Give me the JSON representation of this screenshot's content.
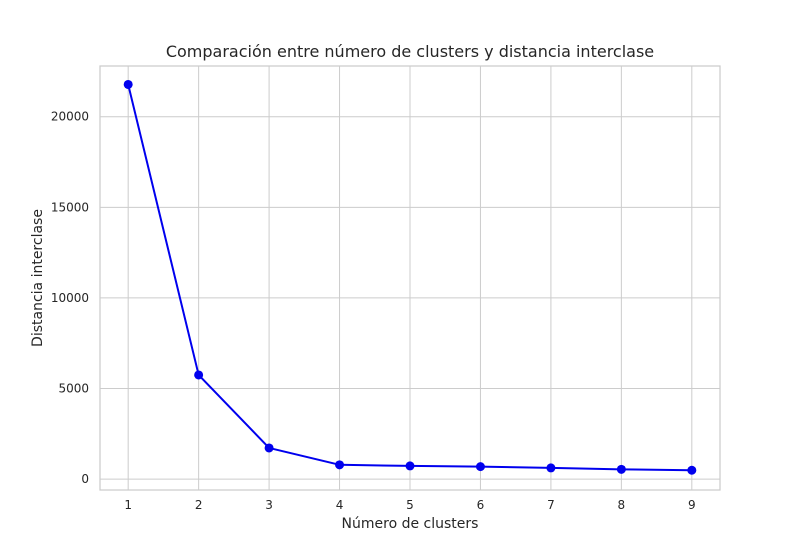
{
  "chart_data": {
    "type": "line",
    "title": "Comparación entre número de clusters y distancia interclase",
    "xlabel": "Número de clusters",
    "ylabel": "Distancia interclase",
    "x": [
      1,
      2,
      3,
      4,
      5,
      6,
      7,
      8,
      9
    ],
    "xlim": [
      0.6,
      9.4
    ],
    "ylim": [
      -600,
      22800
    ],
    "xticks": [
      1,
      2,
      3,
      4,
      5,
      6,
      7,
      8,
      9
    ],
    "yticks": [
      0,
      5000,
      10000,
      15000,
      20000
    ],
    "grid": true,
    "series": [
      {
        "values": [
          21780,
          5750,
          1720,
          790,
          730,
          690,
          620,
          540,
          490
        ],
        "color": "#0000ee",
        "marker": "circle"
      }
    ]
  }
}
